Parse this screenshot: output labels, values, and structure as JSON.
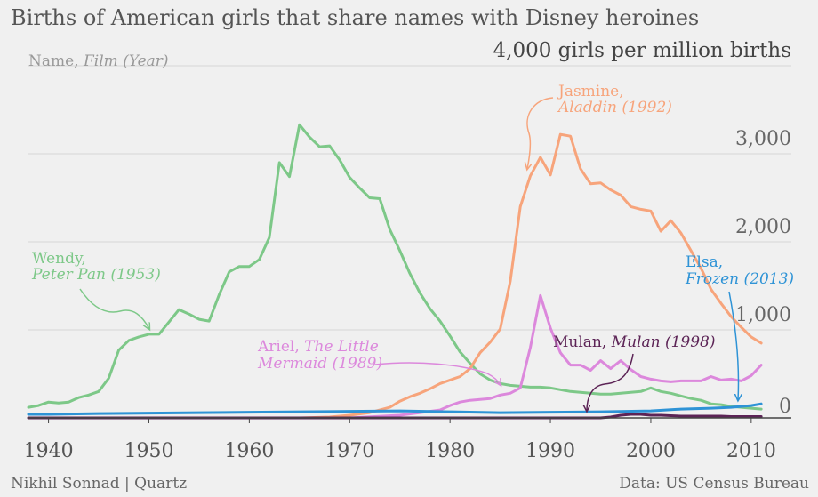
{
  "title": "Births of American girls that share names with Disney heroines",
  "legend_hint": {
    "name": "Name, ",
    "film": "Film (Year)"
  },
  "credit_left": "Nikhil Sonnad | Quartz",
  "credit_right": "Data: US Census Bureau",
  "chart_data": {
    "type": "line",
    "xlim": [
      1938,
      2014
    ],
    "ylim": [
      0,
      4000
    ],
    "grid": true,
    "x_ticks": [
      1940,
      1950,
      1960,
      1970,
      1980,
      1990,
      2000,
      2010
    ],
    "y_ticks": [
      {
        "value": 0,
        "label": "0"
      },
      {
        "value": 1000,
        "label": "1,000"
      },
      {
        "value": 2000,
        "label": "2,000"
      },
      {
        "value": 3000,
        "label": "3,000"
      },
      {
        "value": 4000,
        "label": "4,000 girls per million births"
      }
    ],
    "series": [
      {
        "key": "wendy",
        "color": "#7dc888",
        "label_name": "Wendy,",
        "label_film": "Peter Pan (1953)",
        "x": [
          1938,
          1939,
          1940,
          1941,
          1942,
          1943,
          1944,
          1945,
          1946,
          1947,
          1948,
          1949,
          1950,
          1951,
          1952,
          1953,
          1954,
          1955,
          1956,
          1957,
          1958,
          1959,
          1960,
          1961,
          1962,
          1963,
          1964,
          1965,
          1966,
          1967,
          1968,
          1969,
          1970,
          1971,
          1972,
          1973,
          1974,
          1975,
          1976,
          1977,
          1978,
          1979,
          1980,
          1981,
          1982,
          1983,
          1984,
          1985,
          1986,
          1987,
          1988,
          1989,
          1990,
          1991,
          1992,
          1993,
          1994,
          1995,
          1996,
          1997,
          1998,
          1999,
          2000,
          2001,
          2002,
          2003,
          2004,
          2005,
          2006,
          2007,
          2008,
          2009,
          2010,
          2011
        ],
        "y": [
          120,
          140,
          180,
          170,
          180,
          230,
          260,
          300,
          450,
          770,
          880,
          920,
          950,
          950,
          1090,
          1230,
          1180,
          1120,
          1100,
          1400,
          1660,
          1720,
          1720,
          1800,
          2050,
          2900,
          2740,
          3330,
          3190,
          3080,
          3090,
          2930,
          2730,
          2610,
          2500,
          2490,
          2140,
          1900,
          1640,
          1420,
          1240,
          1100,
          930,
          750,
          620,
          500,
          430,
          390,
          370,
          360,
          350,
          350,
          340,
          320,
          300,
          290,
          280,
          270,
          270,
          280,
          290,
          300,
          340,
          300,
          280,
          250,
          220,
          200,
          160,
          150,
          130,
          120,
          110,
          100
        ]
      },
      {
        "key": "jasmine",
        "color": "#f7a47b",
        "label_name": "Jasmine,",
        "label_film": "Aladdin (1992)",
        "x": [
          1938,
          1960,
          1965,
          1968,
          1970,
          1972,
          1974,
          1975,
          1976,
          1977,
          1978,
          1979,
          1980,
          1981,
          1982,
          1983,
          1984,
          1985,
          1986,
          1987,
          1988,
          1989,
          1990,
          1991,
          1992,
          1993,
          1994,
          1995,
          1996,
          1997,
          1998,
          1999,
          2000,
          2001,
          2002,
          2003,
          2004,
          2005,
          2006,
          2007,
          2008,
          2009,
          2010,
          2011
        ],
        "y": [
          0,
          0,
          0,
          10,
          30,
          60,
          120,
          190,
          240,
          280,
          330,
          390,
          430,
          470,
          560,
          740,
          860,
          1010,
          1550,
          2400,
          2750,
          2960,
          2760,
          3220,
          3200,
          2830,
          2660,
          2670,
          2590,
          2530,
          2400,
          2370,
          2350,
          2120,
          2240,
          2100,
          1900,
          1700,
          1460,
          1300,
          1150,
          1030,
          920,
          850
        ]
      },
      {
        "key": "ariel",
        "color": "#dc88dc",
        "label_name": "Ariel, ",
        "label_film_line1": "The Little",
        "label_film_line2": "Mermaid (1989)",
        "x": [
          1938,
          1970,
          1975,
          1977,
          1979,
          1980,
          1981,
          1982,
          1983,
          1984,
          1985,
          1986,
          1987,
          1988,
          1989,
          1990,
          1991,
          1992,
          1993,
          1994,
          1995,
          1996,
          1997,
          1998,
          1999,
          2000,
          2001,
          2002,
          2003,
          2004,
          2005,
          2006,
          2007,
          2008,
          2009,
          2010,
          2011
        ],
        "y": [
          0,
          0,
          30,
          60,
          90,
          140,
          180,
          200,
          210,
          220,
          260,
          280,
          340,
          800,
          1390,
          1020,
          740,
          600,
          600,
          540,
          650,
          560,
          650,
          550,
          470,
          440,
          420,
          410,
          420,
          420,
          420,
          470,
          430,
          440,
          420,
          480,
          600
        ]
      },
      {
        "key": "mulan",
        "color": "#5c2456",
        "label_name": "Mulan, ",
        "label_film": "Mulan (1998)",
        "x": [
          1938,
          1995,
          1996,
          1997,
          1998,
          1999,
          2000,
          2001,
          2002,
          2003,
          2004,
          2005,
          2006,
          2007,
          2008,
          2009,
          2010,
          2011
        ],
        "y": [
          0,
          0,
          10,
          30,
          40,
          40,
          30,
          30,
          25,
          20,
          20,
          20,
          20,
          20,
          15,
          15,
          15,
          15
        ]
      },
      {
        "key": "elsa",
        "color": "#2e93d6",
        "label_name": "Elsa,",
        "label_film": "Frozen (2013)",
        "x": [
          1938,
          1940,
          1945,
          1950,
          1955,
          1960,
          1965,
          1970,
          1975,
          1980,
          1985,
          1990,
          1995,
          2000,
          2003,
          2006,
          2008,
          2009,
          2010,
          2011
        ],
        "y": [
          40,
          40,
          50,
          55,
          60,
          65,
          70,
          75,
          80,
          70,
          60,
          65,
          70,
          80,
          100,
          110,
          120,
          130,
          140,
          160
        ]
      }
    ]
  }
}
